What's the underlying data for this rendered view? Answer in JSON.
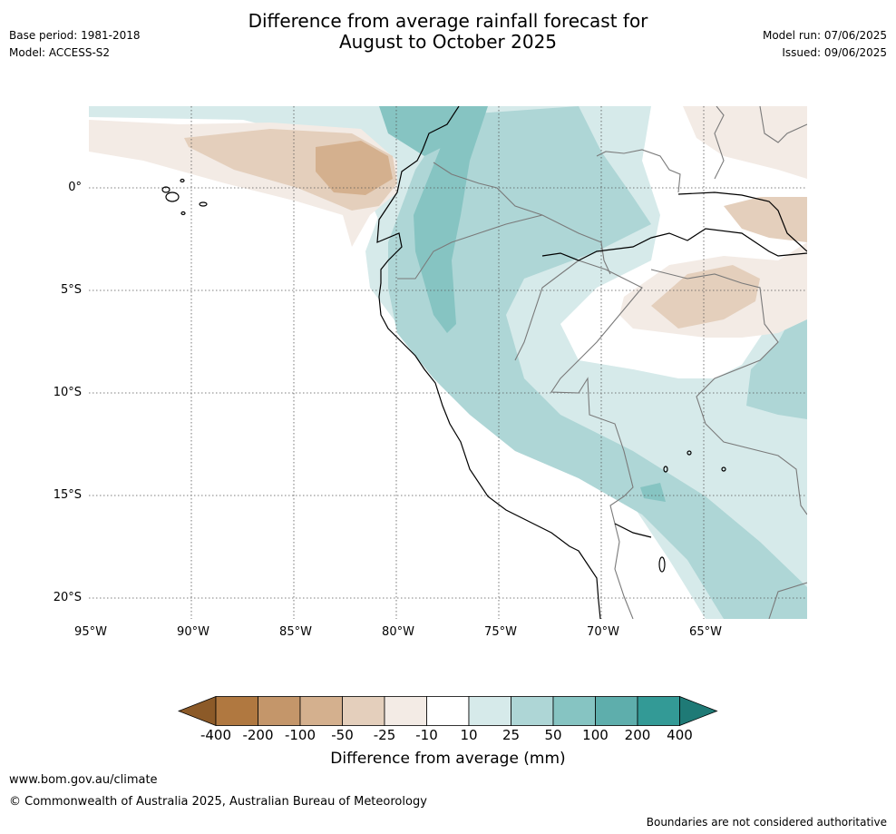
{
  "header": {
    "title_line1": "Difference from average rainfall forecast for",
    "title_line2": "August to October 2025",
    "base_period": "Base period: 1981-2018",
    "model": "Model: ACCESS-S2",
    "model_run": "Model run: 07/06/2025",
    "issued": "Issued: 09/06/2025"
  },
  "map": {
    "lat_labels": [
      "0°",
      "5°S",
      "10°S",
      "15°S",
      "20°S"
    ],
    "lon_labels": [
      "95°W",
      "90°W",
      "85°W",
      "80°W",
      "75°W",
      "70°W",
      "65°W"
    ]
  },
  "colorbar": {
    "title": "Difference from average (mm)",
    "labels": [
      "-400",
      "-200",
      "-100",
      "-50",
      "-25",
      "-10",
      "10",
      "25",
      "50",
      "100",
      "200",
      "400"
    ],
    "colors": [
      "#8c5a28",
      "#b07840",
      "#c4966a",
      "#d4b08e",
      "#e4cfbc",
      "#f3ebe5",
      "#ffffff",
      "#d6eaea",
      "#aed6d6",
      "#86c4c2",
      "#5eaeac",
      "#339a96",
      "#1f7a76"
    ]
  },
  "footer": {
    "url": "www.bom.gov.au/climate",
    "copyright": "© Commonwealth of Australia 2025, Australian Bureau of Meteorology",
    "note": "Boundaries are not considered authoritative"
  }
}
